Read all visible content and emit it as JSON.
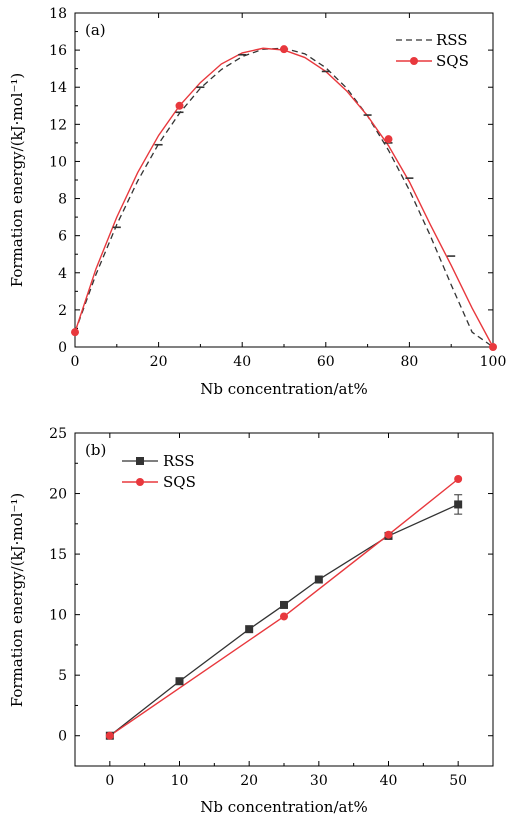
{
  "chart_data": [
    {
      "type": "line",
      "panel_label": "(a)",
      "xlabel": "Nb concentration/at%",
      "ylabel": "Formation energy/(kJ·mol⁻¹)",
      "xlim": [
        0,
        100
      ],
      "ylim": [
        0,
        18
      ],
      "xticks": [
        0,
        20,
        40,
        60,
        80,
        100
      ],
      "yticks": [
        0,
        2,
        4,
        6,
        8,
        10,
        12,
        14,
        16,
        18
      ],
      "legend_position": "top-right",
      "series": [
        {
          "name": "RSS",
          "color": "#333333",
          "style": "dashed-fit-with-dash-markers",
          "points": [
            [
              10,
              6.45
            ],
            [
              20,
              10.9
            ],
            [
              25,
              12.65
            ],
            [
              30,
              14.0
            ],
            [
              40,
              15.75
            ],
            [
              50,
              16.05
            ],
            [
              60,
              14.85
            ],
            [
              70,
              12.5
            ],
            [
              75,
              11.0
            ],
            [
              80,
              9.1
            ],
            [
              90,
              4.9
            ]
          ],
          "fit": [
            [
              0,
              0.8
            ],
            [
              5,
              3.9
            ],
            [
              10,
              6.6
            ],
            [
              15,
              8.95
            ],
            [
              20,
              10.95
            ],
            [
              25,
              12.6
            ],
            [
              30,
              13.95
            ],
            [
              35,
              14.95
            ],
            [
              40,
              15.65
            ],
            [
              45,
              16.05
            ],
            [
              50,
              16.1
            ],
            [
              55,
              15.8
            ],
            [
              60,
              15.05
            ],
            [
              65,
              13.95
            ],
            [
              70,
              12.45
            ],
            [
              75,
              10.6
            ],
            [
              80,
              8.45
            ],
            [
              85,
              6.0
            ],
            [
              90,
              3.35
            ],
            [
              95,
              0.8
            ],
            [
              100,
              0.0
            ]
          ]
        },
        {
          "name": "SQS",
          "color": "#e8383d",
          "style": "solid-fit-with-circle-markers",
          "points": [
            [
              0,
              0.8
            ],
            [
              25,
              13.0
            ],
            [
              50,
              16.05
            ],
            [
              75,
              11.2
            ],
            [
              100,
              0.0
            ]
          ],
          "fit": [
            [
              0,
              0.8
            ],
            [
              5,
              4.2
            ],
            [
              10,
              7.0
            ],
            [
              15,
              9.4
            ],
            [
              20,
              11.4
            ],
            [
              25,
              13.0
            ],
            [
              30,
              14.25
            ],
            [
              35,
              15.25
            ],
            [
              40,
              15.85
            ],
            [
              45,
              16.1
            ],
            [
              50,
              16.0
            ],
            [
              55,
              15.6
            ],
            [
              60,
              14.85
            ],
            [
              65,
              13.8
            ],
            [
              70,
              12.45
            ],
            [
              75,
              10.85
            ],
            [
              80,
              8.9
            ],
            [
              85,
              6.6
            ],
            [
              90,
              4.4
            ],
            [
              95,
              2.1
            ],
            [
              100,
              0.0
            ]
          ]
        }
      ]
    },
    {
      "type": "line",
      "panel_label": "(b)",
      "xlabel": "Nb concentration/at%",
      "ylabel": "Formation energy/(kJ·mol⁻¹)",
      "xlim": [
        -5,
        55
      ],
      "ylim": [
        -2.5,
        25
      ],
      "xticks": [
        0,
        10,
        20,
        30,
        40,
        50
      ],
      "yticks": [
        0,
        5,
        10,
        15,
        20,
        25
      ],
      "legend_position": "top-left",
      "series": [
        {
          "name": "RSS",
          "color": "#333333",
          "marker": "square",
          "x": [
            0,
            10,
            20,
            25,
            30,
            40,
            50
          ],
          "y": [
            0.0,
            4.5,
            8.8,
            10.8,
            12.9,
            16.5,
            19.1
          ],
          "error": [
            0,
            0,
            0,
            0,
            0,
            0,
            0.8
          ]
        },
        {
          "name": "SQS",
          "color": "#e8383d",
          "marker": "circle",
          "x": [
            0,
            25,
            40,
            50
          ],
          "y": [
            0.0,
            9.85,
            16.6,
            21.2
          ]
        }
      ]
    }
  ]
}
